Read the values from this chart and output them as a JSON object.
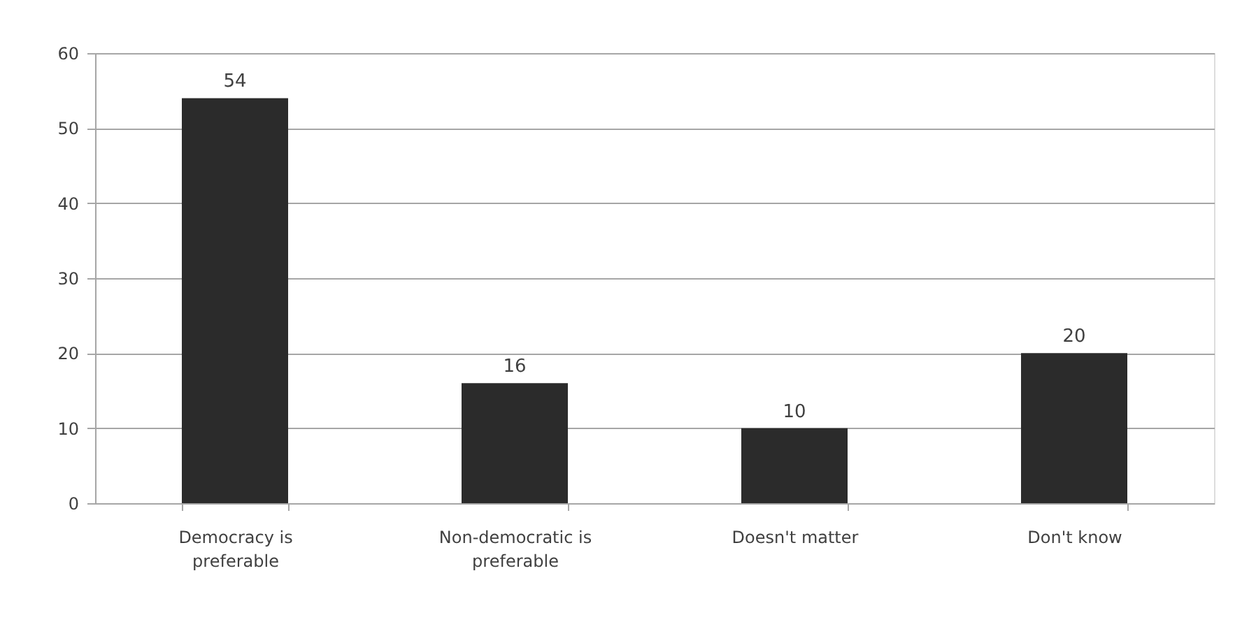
{
  "chart_data": {
    "type": "bar",
    "categories": [
      "Democracy is preferable",
      "Non-democratic is preferable",
      "Doesn't matter",
      "Don't know"
    ],
    "values": [
      54,
      16,
      10,
      20
    ],
    "color": "#2b2b2b",
    "ylim": [
      0,
      60
    ],
    "yticks": [
      0,
      10,
      20,
      30,
      40,
      50,
      60
    ],
    "grid": "y",
    "data_labels": true
  }
}
